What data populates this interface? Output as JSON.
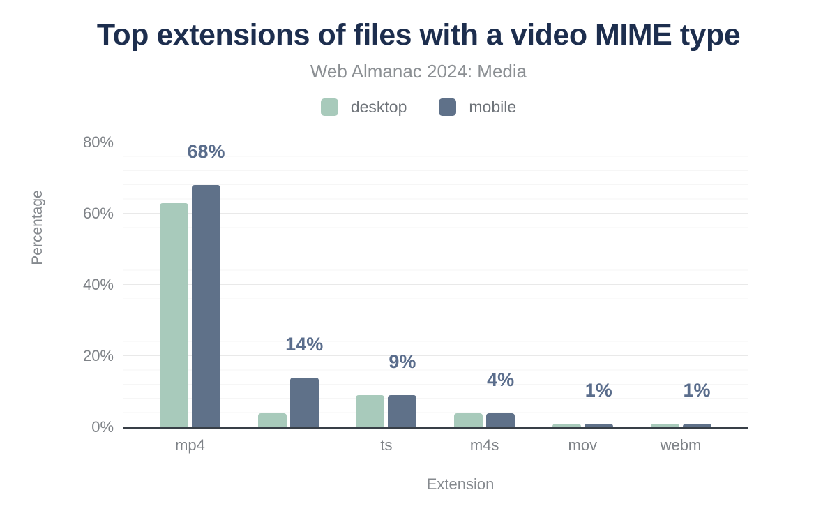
{
  "legend": [
    {
      "label": "desktop",
      "color": "#a8cabb"
    },
    {
      "label": "mobile",
      "color": "#5f7189"
    }
  ],
  "colors": {
    "title": "#1d2e4e",
    "subtitle": "#8b8f93",
    "data_label": "#5a6d8c",
    "axis_text": "#7e8287",
    "axis_line": "#383f47",
    "gridline_major": "#e9e9e9",
    "gridline_minor": "#f6f6f6",
    "desktop_bar": "#a8cabb",
    "mobile_bar": "#5f7189",
    "background": "#ffffff"
  },
  "chart_data": {
    "type": "bar",
    "title": "Top extensions of files with a video MIME type",
    "subtitle": "Web Almanac 2024: Media",
    "categories": [
      "mp4",
      "",
      "ts",
      "m4s",
      "mov",
      "webm"
    ],
    "series": [
      {
        "name": "desktop",
        "color": "#a8cabb",
        "values": [
          63,
          4,
          9,
          4,
          1,
          1
        ]
      },
      {
        "name": "mobile",
        "color": "#5f7189",
        "values": [
          68,
          14,
          9,
          4,
          1,
          1
        ]
      }
    ],
    "bar_labels": [
      "68%",
      "14%",
      "9%",
      "4%",
      "1%",
      "1%"
    ],
    "xlabel": "Extension",
    "ylabel": "Percentage",
    "ylim": [
      0,
      80
    ],
    "yticks": [
      "0%",
      "20%",
      "40%",
      "60%",
      "80%"
    ],
    "grid": "horizontal",
    "legend_position": "top"
  }
}
